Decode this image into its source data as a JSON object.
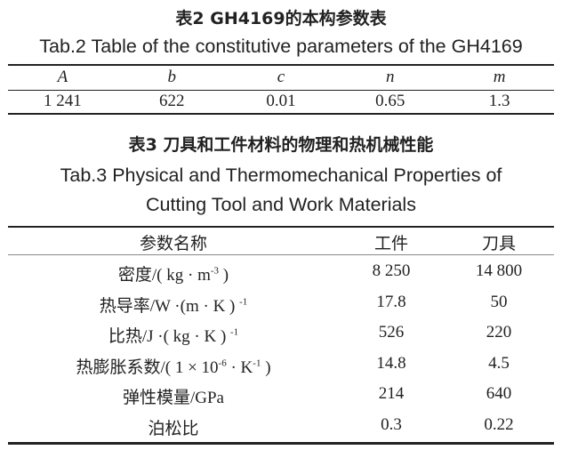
{
  "table2": {
    "title_cn": "表2  GH4169的本构参数表",
    "title_en": "Tab.2  Table of the constitutive parameters of the GH4169",
    "headers": [
      "A",
      "b",
      "c",
      "n",
      "m"
    ],
    "values": [
      "1 241",
      "622",
      "0.01",
      "0.65",
      "1.3"
    ]
  },
  "table3": {
    "title_cn": "表3  刀具和工件材料的物理和热机械性能",
    "title_en_1": "Tab.3  Physical and Thermomechanical Properties of",
    "title_en_2": "Cutting Tool and Work Materials",
    "headers": [
      "参数名称",
      "工件",
      "刀具"
    ],
    "rows": [
      {
        "p": "密度/( kg · m",
        "sup": "-3",
        "tail": " )",
        "w": "8 250",
        "t": "14 800"
      },
      {
        "p": "热导率/W ·(m · K ) ",
        "sup": "-1",
        "tail": "",
        "w": "17.8",
        "t": "50"
      },
      {
        "p": "比热/J ·( kg · K ) ",
        "sup": "-1",
        "tail": "",
        "w": "526",
        "t": "220"
      },
      {
        "p": "热膨胀系数/( 1 × 10",
        "sup": "-6",
        "tail": " · K",
        "sup2": "-1",
        "tail2": " )",
        "w": "14.8",
        "t": "4.5"
      },
      {
        "p": "弹性模量/GPa",
        "w": "214",
        "t": "640"
      },
      {
        "p": "泊松比",
        "w": "0.3",
        "t": "0.22"
      }
    ]
  }
}
